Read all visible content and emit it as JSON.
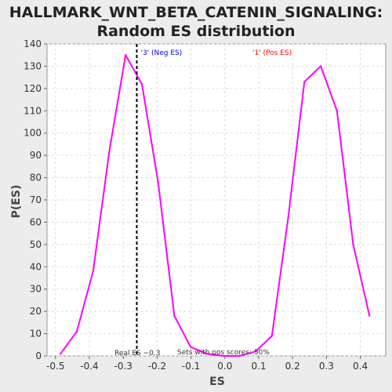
{
  "chart_data": {
    "type": "line",
    "title_line1": "HALLMARK_WNT_BETA_CATENIN_SIGNALING:",
    "title_line2": "Random ES distribution",
    "xlabel": "ES",
    "ylabel": "P(ES)",
    "xlim": [
      -0.525,
      0.475
    ],
    "ylim": [
      0,
      140
    ],
    "xticks": [
      -0.5,
      -0.4,
      -0.3,
      -0.2,
      -0.1,
      0.0,
      0.1,
      0.2,
      0.3,
      0.4
    ],
    "xtick_labels": [
      "-0.5",
      "-0.4",
      "-0.3",
      "-0.2",
      "-0.1",
      "0.0",
      "0.1",
      "0.2",
      "0.3",
      "0.4"
    ],
    "yticks": [
      0,
      10,
      20,
      30,
      40,
      50,
      60,
      70,
      80,
      90,
      100,
      110,
      120,
      130,
      140
    ],
    "grid": true,
    "series": [
      {
        "color": "#ff00ff",
        "x": [
          -0.485,
          -0.437,
          -0.389,
          -0.341,
          -0.293,
          -0.245,
          -0.197,
          -0.149,
          -0.101,
          -0.053,
          -0.005,
          0.043,
          0.091,
          0.139,
          0.187,
          0.235,
          0.283,
          0.331,
          0.379,
          0.427
        ],
        "y": [
          1,
          11,
          38,
          92,
          135,
          122,
          78,
          18,
          4,
          1,
          0,
          0,
          2,
          9,
          62,
          123,
          130,
          110,
          50,
          18
        ]
      }
    ],
    "real_es": -0.26,
    "real_es_label": "Real ES −0.3",
    "neg_label": "'3' (Neg ES)",
    "pos_label": "'1' (Pos ES)",
    "neg_color": "#0000ff",
    "pos_color": "#ff0000",
    "pos_fraction_label": "Sets with pos scores: 50%"
  }
}
